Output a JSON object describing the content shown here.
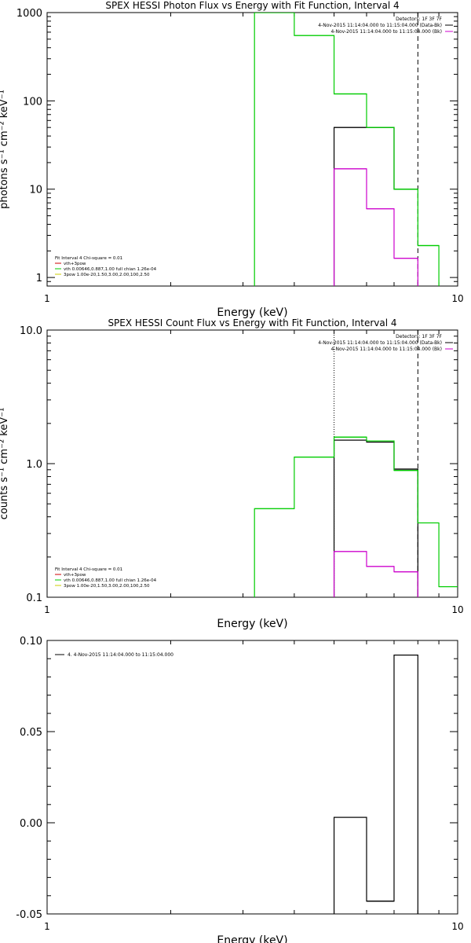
{
  "chart_data": [
    {
      "type": "line",
      "title": "SPEX HESSI Photon Flux vs Energy with Fit Function, Interval 4",
      "xlabel": "Energy (keV)",
      "ylabel": "photons s⁻¹ cm⁻² keV⁻¹",
      "xscale": "log",
      "yscale": "log",
      "xlim": [
        1,
        10
      ],
      "ylim": [
        0.8,
        1000
      ],
      "xticks": [
        {
          "v": 1,
          "label": "1"
        },
        {
          "v": 10,
          "label": "10"
        }
      ],
      "yticks": [
        {
          "v": 1,
          "label": "1"
        },
        {
          "v": 10,
          "label": "10"
        },
        {
          "v": 100,
          "label": "100"
        },
        {
          "v": 1000,
          "label": "1000"
        }
      ],
      "header": [
        "Detectors: 1F 3F 7F",
        "4-Nov-2015 11:14:04.000 to 11:15:04.000 (Data-Bk)",
        "4-Nov-2015 11:14:04.000 to 11:15:04.000 (Bk)"
      ],
      "header_colors": [
        "#000000",
        "#000000",
        "#cc00cc"
      ],
      "legend_title": "Fit Interval  4   Chi-square = 0.01",
      "legend": [
        {
          "label": "vth+3pow",
          "color": "#cc0000"
        },
        {
          "label": "vth 0.00646,0.887,1.00  full chian 1.26e-04",
          "color": "#00cc00"
        },
        {
          "label": "3pow 1.00e-20,1.50,3.00,2.00,100,2.50",
          "color": "#cccc00"
        }
      ],
      "series": [
        {
          "name": "Data-Bk",
          "color": "#000000",
          "edges": [
            5,
            6,
            7,
            8
          ],
          "values": [
            50,
            50,
            10
          ],
          "start_floor": true
        },
        {
          "name": "Bk",
          "color": "#cc00cc",
          "edges": [
            5,
            6,
            7,
            8
          ],
          "values": [
            17,
            6,
            1.65
          ],
          "start_floor": true,
          "end_floor": true
        },
        {
          "name": "vth+3pow",
          "color": "#00cc00",
          "edges": [
            3.2,
            4,
            5,
            6,
            7,
            8,
            9
          ],
          "values": [
            1000,
            550,
            120,
            50,
            10,
            2.3
          ],
          "start_floor": true,
          "end_floor": true
        }
      ],
      "vlines": [
        {
          "x": 8,
          "style": "dashed",
          "color": "#000000"
        }
      ]
    },
    {
      "type": "line",
      "title": "SPEX HESSI Count Flux vs Energy with Fit Function, Interval 4",
      "xlabel": "Energy (keV)",
      "ylabel": "counts s⁻¹ cm⁻² keV⁻¹",
      "xscale": "log",
      "yscale": "log",
      "xlim": [
        1,
        10
      ],
      "ylim": [
        0.1,
        10
      ],
      "xticks": [
        {
          "v": 1,
          "label": "1"
        },
        {
          "v": 10,
          "label": "10"
        }
      ],
      "yticks": [
        {
          "v": 0.1,
          "label": "0.1"
        },
        {
          "v": 1,
          "label": "1.0"
        },
        {
          "v": 10,
          "label": "10.0"
        }
      ],
      "header": [
        "Detectors: 1F 3F 7F",
        "4-Nov-2015 11:14:04.000 to 11:15:04.000 (Data-Bk)",
        "4-Nov-2015 11:14:04.000 to 11:15:04.000 (Bk)"
      ],
      "header_colors": [
        "#000000",
        "#000000",
        "#cc00cc"
      ],
      "legend_title": "Fit Interval  4   Chi-square = 0.01",
      "legend": [
        {
          "label": "vth+3pow",
          "color": "#cc0000"
        },
        {
          "label": "vth 0.00646,0.887,1.00  full chian 1.26e-04",
          "color": "#00cc00"
        },
        {
          "label": "3pow 1.00e-20,1.50,3.00,2.00,100,2.50",
          "color": "#cccc00"
        }
      ],
      "series": [
        {
          "name": "Data-Bk",
          "color": "#000000",
          "edges": [
            5,
            6,
            7,
            8
          ],
          "values": [
            1.5,
            1.45,
            0.91
          ],
          "start_floor": true,
          "end_floor": true
        },
        {
          "name": "Bk",
          "color": "#cc00cc",
          "edges": [
            5,
            6,
            7,
            8
          ],
          "values": [
            0.22,
            0.17,
            0.155
          ],
          "start_floor": true,
          "end_floor": true
        },
        {
          "name": "vth+3pow",
          "color": "#00cc00",
          "edges": [
            3.2,
            4,
            5,
            6,
            7,
            8,
            9,
            10
          ],
          "values": [
            0.46,
            1.12,
            1.58,
            1.48,
            0.89,
            0.36,
            0.12
          ],
          "start_floor": true
        }
      ],
      "vlines": [
        {
          "x": 5,
          "style": "dotted",
          "color": "#000000"
        },
        {
          "x": 8,
          "style": "dashed",
          "color": "#000000"
        }
      ]
    },
    {
      "type": "line",
      "title": "",
      "xlabel": "Energy (keV)",
      "ylabel": "",
      "xscale": "log",
      "yscale": "linear",
      "xlim": [
        1,
        10
      ],
      "ylim": [
        -0.05,
        0.1
      ],
      "xticks": [
        {
          "v": 1,
          "label": "1"
        },
        {
          "v": 10,
          "label": "10"
        }
      ],
      "yticks": [
        {
          "v": -0.05,
          "label": "-0.05"
        },
        {
          "v": 0,
          "label": "0.00"
        },
        {
          "v": 0.05,
          "label": "0.05"
        },
        {
          "v": 0.1,
          "label": "0.10"
        }
      ],
      "legend": [
        {
          "label": "4.  4-Nov-2015 11:14:04.000 to 11:15:04.000",
          "color": "#000000"
        }
      ],
      "series": [
        {
          "name": "residuals",
          "color": "#000000",
          "edges": [
            5,
            6,
            7,
            8
          ],
          "values": [
            0.003,
            -0.043,
            0.092
          ],
          "start_floor": true,
          "end_floor": true
        }
      ],
      "vlines": []
    }
  ]
}
